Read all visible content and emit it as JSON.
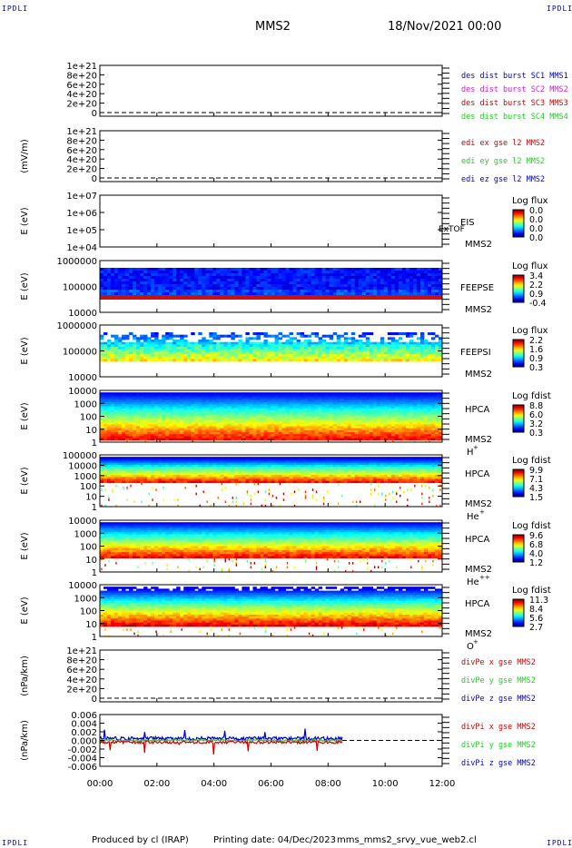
{
  "corner_label": "IPDLI",
  "header": {
    "spacecraft": "MMS2",
    "date": "18/Nov/2021 00:00"
  },
  "footer": {
    "produced": "Produced by cl (IRAP)",
    "printing": "Printing date: 04/Dec/2023",
    "file": "mms_mms2_srvy_vue_web2.cl"
  },
  "colors": {
    "red": "#cc0000",
    "green": "#22cc22",
    "blue": "#0000cc",
    "magenta": "#cc22cc"
  },
  "chart_data": [
    {
      "id": "p1",
      "type": "line",
      "ylabel": "",
      "yticks": [
        "1e+21",
        "8e+20",
        "6e+20",
        "4e+20",
        "2e+20",
        "0"
      ],
      "legend": [
        {
          "text": "des dist burst SC1 MMS1",
          "color": "#0000cc"
        },
        {
          "text": "des dist burst SC2 MMS2",
          "color": "#cc22cc"
        },
        {
          "text": "des dist burst SC3 MMS3",
          "color": "#cc0000"
        },
        {
          "text": "des dist burst SC4 MMS4",
          "color": "#22cc22"
        }
      ]
    },
    {
      "id": "p2",
      "type": "line",
      "ylabel": "(mV/m)",
      "yticks": [
        "1e+21",
        "8e+20",
        "6e+20",
        "4e+20",
        "2e+20",
        "0"
      ],
      "legend": [
        {
          "text": "edi ex gse l2 MMS2",
          "color": "#cc0000"
        },
        {
          "text": "edi ey gse l2 MMS2",
          "color": "#22cc22"
        },
        {
          "text": "edi ez gse l2 MMS2",
          "color": "#0000cc"
        }
      ]
    },
    {
      "id": "p3",
      "type": "heatmap",
      "ylabel": "E (eV)",
      "yticks": [
        "1e+07",
        "1e+06",
        "1e+05",
        "1e+04"
      ],
      "instrument": "EIS",
      "overlay": "ExTOF",
      "sc": "MMS2",
      "cbar_title": "Log flux",
      "cbar": [
        "0.0",
        "0.0",
        "0.0",
        "0.0"
      ]
    },
    {
      "id": "p4",
      "type": "heatmap",
      "ylabel": "E (eV)",
      "yticks": [
        "1000000",
        "100000",
        "10000"
      ],
      "instrument": "FEEPSE",
      "sc": "MMS2",
      "cbar_title": "Log flux",
      "cbar": [
        "3.4",
        "2.2",
        "0.9",
        "-0.4"
      ]
    },
    {
      "id": "p5",
      "type": "heatmap",
      "ylabel": "E (eV)",
      "yticks": [
        "1000000",
        "100000",
        "10000"
      ],
      "instrument": "FEEPSI",
      "sc": "MMS2",
      "cbar_title": "Log flux",
      "cbar": [
        "2.2",
        "1.6",
        "0.9",
        "0.3"
      ]
    },
    {
      "id": "p6",
      "type": "heatmap",
      "ylabel": "E (eV)",
      "yticks": [
        "10000",
        "1000",
        "100",
        "10",
        "1"
      ],
      "instrument": "HPCA",
      "sc": "MMS2",
      "species": "H",
      "charge": "+",
      "cbar_title": "Log fdist",
      "cbar": [
        "8.8",
        "6.0",
        "3.2",
        "0.3"
      ]
    },
    {
      "id": "p7",
      "type": "heatmap",
      "ylabel": "E (eV)",
      "yticks": [
        "100000",
        "10000",
        "1000",
        "100",
        "10",
        "1"
      ],
      "instrument": "HPCA",
      "sc": "MMS2",
      "species": "He",
      "charge": "+",
      "cbar_title": "Log fdist",
      "cbar": [
        "9.9",
        "7.1",
        "4.3",
        "1.5"
      ]
    },
    {
      "id": "p8",
      "type": "heatmap",
      "ylabel": "E (eV)",
      "yticks": [
        "10000",
        "1000",
        "100",
        "10",
        "1"
      ],
      "instrument": "HPCA",
      "sc": "MMS2",
      "species": "He",
      "charge": "++",
      "cbar_title": "Log fdist",
      "cbar": [
        "9.6",
        "6.8",
        "4.0",
        "1.2"
      ]
    },
    {
      "id": "p9",
      "type": "heatmap",
      "ylabel": "E (eV)",
      "yticks": [
        "10000",
        "1000",
        "100",
        "10",
        "1"
      ],
      "instrument": "HPCA",
      "sc": "MMS2",
      "species": "O",
      "charge": "+",
      "cbar_title": "Log fdist",
      "cbar": [
        "11.3",
        "8.4",
        "5.6",
        "2.7"
      ]
    },
    {
      "id": "p10",
      "type": "line",
      "ylabel": "(nPa/km)",
      "yticks": [
        "1e+21",
        "8e+20",
        "6e+20",
        "4e+20",
        "2e+20",
        "0"
      ],
      "legend": [
        {
          "text": "divPe x gse MMS2",
          "color": "#cc0000"
        },
        {
          "text": "divPe y gse MMS2",
          "color": "#22cc22"
        },
        {
          "text": "divPe z gse MMS2",
          "color": "#0000cc"
        }
      ]
    },
    {
      "id": "p11",
      "type": "line",
      "ylabel": "(nPa/km)",
      "yticks": [
        "0.006",
        "0.004",
        "0.002",
        "0.000",
        "-0.002",
        "-0.004",
        "-0.006"
      ],
      "ylim": [
        -0.006,
        0.006
      ],
      "legend": [
        {
          "text": "divPi x gse MMS2",
          "color": "#cc0000"
        },
        {
          "text": "divPi y gse MMS2",
          "color": "#22cc22"
        },
        {
          "text": "divPi z gse MMS2",
          "color": "#0000cc"
        }
      ],
      "data_end_hour": 8.5
    }
  ],
  "xaxis": {
    "ticks": [
      "00:00",
      "02:00",
      "04:00",
      "06:00",
      "08:00",
      "10:00",
      "12:00"
    ],
    "range_hours": [
      0,
      12
    ]
  }
}
